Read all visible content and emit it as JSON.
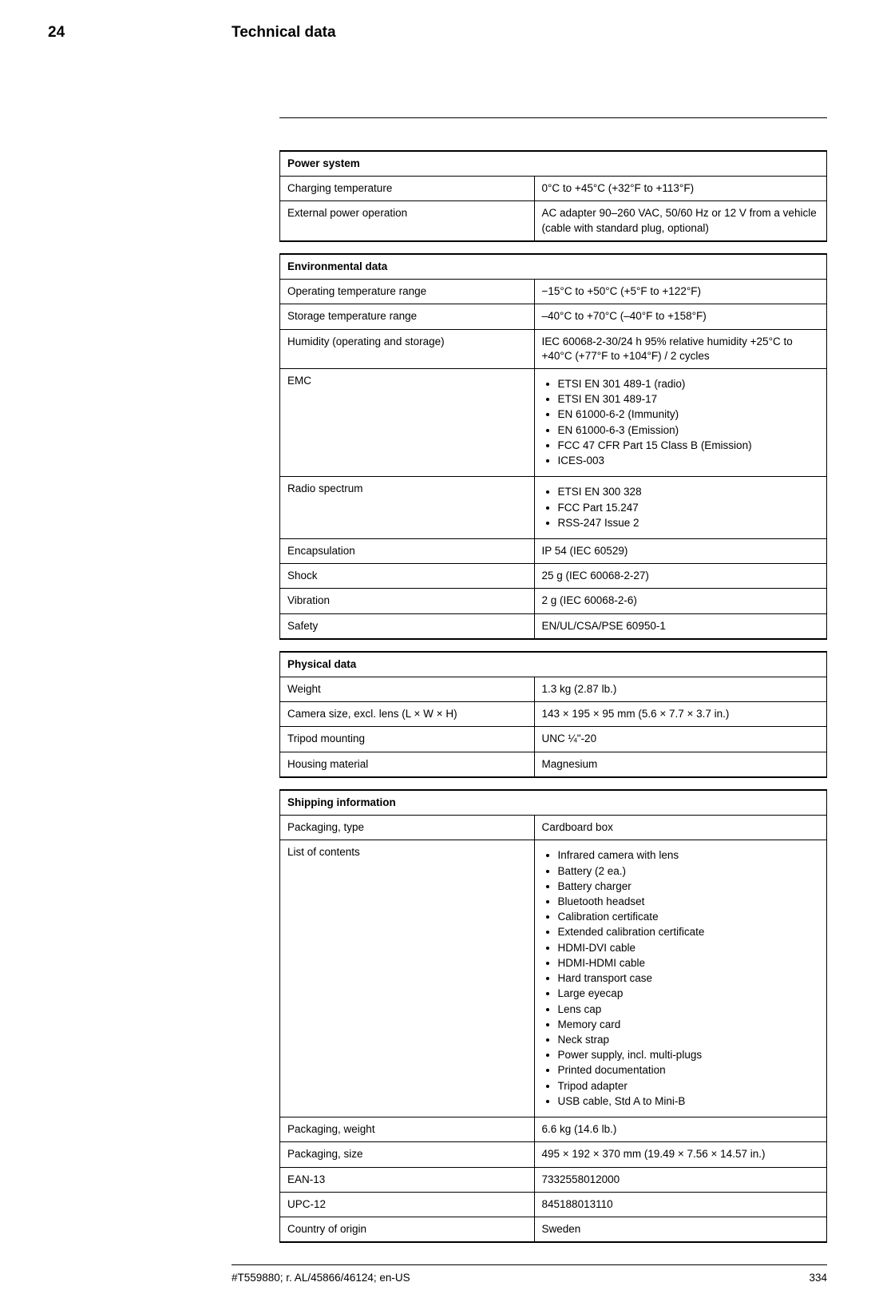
{
  "header": {
    "chapter_number": "24",
    "chapter_title": "Technical data"
  },
  "sections": [
    {
      "title": "Power system",
      "rows": [
        {
          "label": "Charging temperature",
          "value": "0°C to +45°C (+32°F to +113°F)"
        },
        {
          "label": "External power operation",
          "value": "AC adapter 90–260 VAC, 50/60 Hz or 12 V from a vehicle (cable with standard plug, optional)"
        }
      ]
    },
    {
      "title": "Environmental data",
      "rows": [
        {
          "label": "Operating temperature range",
          "value": "−15°C to +50°C (+5°F to +122°F)"
        },
        {
          "label": "Storage temperature range",
          "value": "–40°C to +70°C (–40°F to +158°F)"
        },
        {
          "label": "Humidity (operating and storage)",
          "value": "IEC 60068-2-30/24 h 95% relative humidity +25°C to +40°C (+77°F to +104°F) / 2 cycles"
        },
        {
          "label": "EMC",
          "list": [
            "ETSI EN 301 489-1 (radio)",
            "ETSI EN 301 489-17",
            "EN 61000-6-2 (Immunity)",
            "EN 61000-6-3 (Emission)",
            "FCC 47 CFR Part 15 Class B (Emission)",
            "ICES-003"
          ]
        },
        {
          "label": "Radio spectrum",
          "list": [
            "ETSI EN 300 328",
            "FCC Part 15.247",
            "RSS-247 Issue 2"
          ]
        },
        {
          "label": "Encapsulation",
          "value": "IP 54 (IEC 60529)"
        },
        {
          "label": "Shock",
          "value": "25 g (IEC 60068-2-27)"
        },
        {
          "label": "Vibration",
          "value": "2 g (IEC 60068-2-6)"
        },
        {
          "label": "Safety",
          "value": "EN/UL/CSA/PSE 60950-1"
        }
      ]
    },
    {
      "title": "Physical data",
      "rows": [
        {
          "label": "Weight",
          "value": "1.3 kg (2.87 lb.)"
        },
        {
          "label": "Camera size, excl. lens (L × W × H)",
          "value": "143 × 195 × 95 mm (5.6 × 7.7 × 3.7 in.)"
        },
        {
          "label": "Tripod mounting",
          "value": "UNC ¼\"-20"
        },
        {
          "label": "Housing material",
          "value": "Magnesium"
        }
      ]
    },
    {
      "title": "Shipping information",
      "rows": [
        {
          "label": "Packaging, type",
          "value": "Cardboard box"
        },
        {
          "label": "List of contents",
          "list": [
            "Infrared camera with lens",
            "Battery (2 ea.)",
            "Battery charger",
            "Bluetooth headset",
            "Calibration certificate",
            "Extended calibration certificate",
            "HDMI-DVI cable",
            "HDMI-HDMI cable",
            "Hard transport case",
            "Large eyecap",
            "Lens cap",
            "Memory card",
            "Neck strap",
            "Power supply, incl. multi-plugs",
            "Printed documentation",
            "Tripod adapter",
            "USB cable, Std A to Mini-B"
          ]
        },
        {
          "label": "Packaging, weight",
          "value": "6.6 kg (14.6 lb.)"
        },
        {
          "label": "Packaging, size",
          "value": "495 × 192 × 370 mm (19.49 × 7.56 × 14.57 in.)"
        },
        {
          "label": "EAN-13",
          "value": "7332558012000"
        },
        {
          "label": "UPC-12",
          "value": "845188013110"
        },
        {
          "label": "Country of origin",
          "value": "Sweden"
        }
      ]
    }
  ],
  "footer": {
    "doc_ref": "#T559880; r. AL/45866/46124; en-US",
    "page_number": "334"
  }
}
